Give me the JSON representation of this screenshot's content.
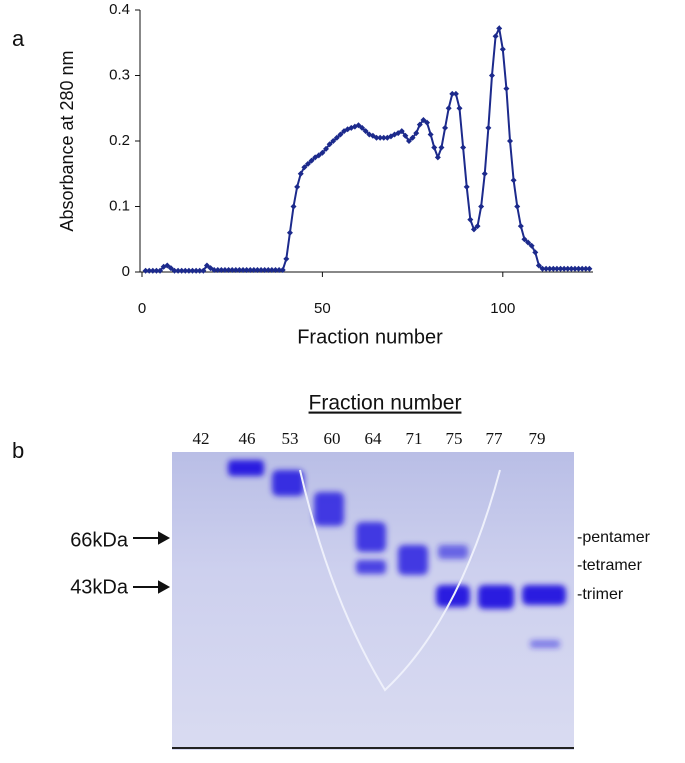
{
  "chart_data": {
    "type": "line",
    "x_label": "Fraction number",
    "y_label": "Absorbance at 280 nm",
    "x": [
      1,
      2,
      3,
      4,
      5,
      6,
      7,
      8,
      9,
      10,
      11,
      12,
      13,
      14,
      15,
      16,
      17,
      18,
      19,
      20,
      21,
      22,
      23,
      24,
      25,
      26,
      27,
      28,
      29,
      30,
      31,
      32,
      33,
      34,
      35,
      36,
      37,
      38,
      39,
      40,
      41,
      42,
      43,
      44,
      45,
      46,
      47,
      48,
      49,
      50,
      51,
      52,
      53,
      54,
      55,
      56,
      57,
      58,
      59,
      60,
      61,
      62,
      63,
      64,
      65,
      66,
      67,
      68,
      69,
      70,
      71,
      72,
      73,
      74,
      75,
      76,
      77,
      78,
      79,
      80,
      81,
      82,
      83,
      84,
      85,
      86,
      87,
      88,
      89,
      90,
      91,
      92,
      93,
      94,
      95,
      96,
      97,
      98,
      99,
      100,
      101,
      102,
      103,
      104,
      105,
      106,
      107,
      108,
      109,
      110,
      111,
      112,
      113,
      114,
      115,
      116,
      117,
      118,
      119,
      120,
      121,
      122,
      123,
      124
    ],
    "series": [
      {
        "color": "#1c2a8c",
        "values": [
          0.002,
          0.002,
          0.002,
          0.002,
          0.002,
          0.008,
          0.01,
          0.006,
          0.002,
          0.002,
          0.002,
          0.002,
          0.002,
          0.002,
          0.002,
          0.002,
          0.002,
          0.01,
          0.006,
          0.003,
          0.003,
          0.003,
          0.003,
          0.003,
          0.003,
          0.003,
          0.003,
          0.003,
          0.003,
          0.003,
          0.003,
          0.003,
          0.003,
          0.003,
          0.003,
          0.003,
          0.003,
          0.003,
          0.003,
          0.02,
          0.06,
          0.1,
          0.13,
          0.15,
          0.16,
          0.165,
          0.17,
          0.175,
          0.178,
          0.182,
          0.188,
          0.195,
          0.2,
          0.205,
          0.21,
          0.215,
          0.218,
          0.22,
          0.222,
          0.224,
          0.22,
          0.215,
          0.21,
          0.208,
          0.205,
          0.205,
          0.205,
          0.205,
          0.207,
          0.21,
          0.212,
          0.215,
          0.208,
          0.2,
          0.205,
          0.212,
          0.225,
          0.232,
          0.228,
          0.21,
          0.19,
          0.175,
          0.19,
          0.22,
          0.25,
          0.272,
          0.272,
          0.25,
          0.19,
          0.13,
          0.08,
          0.065,
          0.07,
          0.1,
          0.15,
          0.22,
          0.3,
          0.36,
          0.372,
          0.34,
          0.28,
          0.2,
          0.14,
          0.1,
          0.07,
          0.05,
          0.045,
          0.04,
          0.03,
          0.01,
          0.005,
          0.005,
          0.005,
          0.005,
          0.005,
          0.005,
          0.005,
          0.005,
          0.005,
          0.005,
          0.005,
          0.005,
          0.005,
          0.005
        ]
      }
    ],
    "xlim": [
      0,
      125
    ],
    "xticks": [
      0,
      50,
      100
    ],
    "ylim": [
      0,
      0.4
    ],
    "yticks": [
      0,
      0.1,
      0.2,
      0.3,
      0.4
    ]
  },
  "panel_labels": [
    "a",
    "b"
  ],
  "gel": {
    "title": "Fraction number",
    "lanes": [
      42,
      46,
      53,
      60,
      64,
      71,
      75,
      77,
      79
    ],
    "markers": [
      "66kDa",
      "43kDa"
    ],
    "band_labels": [
      "-pentamer",
      "-tetramer",
      "-trimer"
    ]
  }
}
